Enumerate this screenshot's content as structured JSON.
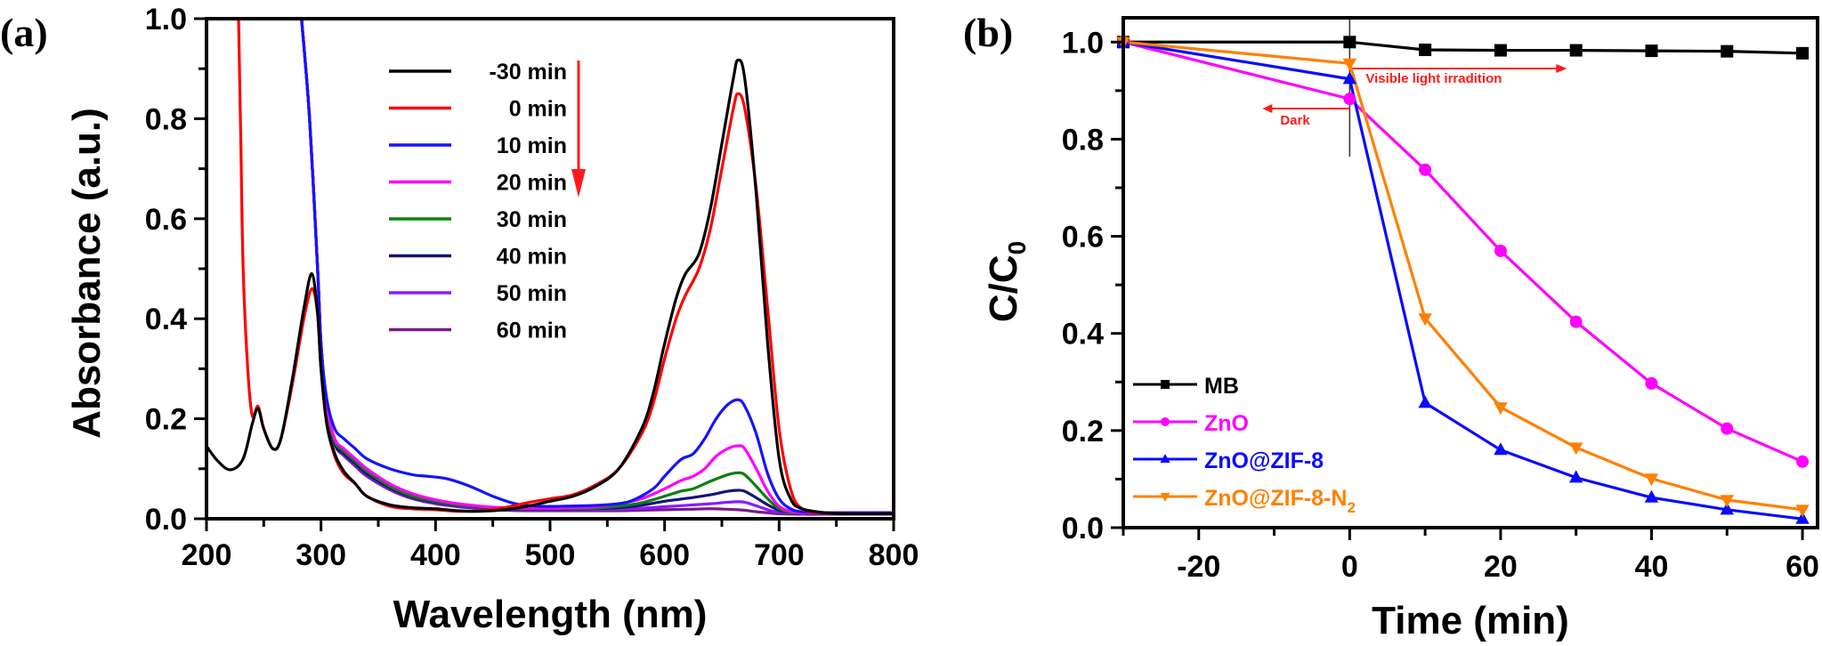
{
  "chart_data": [
    {
      "panel_label": "(a)",
      "type": "line",
      "title": "",
      "xlabel": "Wavelength (nm)",
      "ylabel": "Absorbance (a.u.)",
      "xlim": [
        200,
        800
      ],
      "ylim": [
        0.0,
        1.0
      ],
      "xticks": [
        200,
        300,
        400,
        500,
        600,
        700,
        800
      ],
      "xtick_labels": [
        "200",
        "300",
        "400",
        "500",
        "600",
        "700",
        "800"
      ],
      "yticks": [
        0.0,
        0.2,
        0.4,
        0.6,
        0.8,
        1.0
      ],
      "ytick_labels": [
        "0.0",
        "0.2",
        "0.4",
        "0.6",
        "0.8",
        "1.0"
      ],
      "grid": false,
      "legend_position": "top-center",
      "annotation": "red downward arrow beside legend indicating decreasing absorbance with time",
      "series": [
        {
          "name": "-30 min",
          "color": "#000000",
          "x": [
            200,
            210,
            221,
            232,
            240,
            245,
            250,
            258,
            265,
            275,
            285,
            292,
            297,
            300,
            305,
            312,
            320,
            330,
            340,
            360,
            380,
            400,
            420,
            440,
            460,
            480,
            500,
            520,
            540,
            560,
            580,
            590,
            600,
            610,
            618,
            630,
            640,
            650,
            660,
            664,
            670,
            680,
            690,
            700,
            710,
            720,
            740,
            760,
            800
          ],
          "y": [
            0.145,
            0.115,
            0.098,
            0.12,
            0.19,
            0.22,
            0.18,
            0.14,
            0.16,
            0.28,
            0.42,
            0.49,
            0.41,
            0.3,
            0.19,
            0.13,
            0.095,
            0.07,
            0.045,
            0.028,
            0.022,
            0.02,
            0.016,
            0.015,
            0.018,
            0.025,
            0.035,
            0.045,
            0.065,
            0.1,
            0.18,
            0.25,
            0.35,
            0.44,
            0.489,
            0.53,
            0.62,
            0.75,
            0.88,
            0.917,
            0.88,
            0.65,
            0.35,
            0.12,
            0.04,
            0.02,
            0.012,
            0.01,
            0.01
          ]
        },
        {
          "name": "0 min",
          "color": "#ff0000",
          "x": [
            228,
            230,
            232,
            236,
            240,
            245,
            250,
            258,
            265,
            275,
            285,
            292,
            297,
            300,
            305,
            312,
            320,
            330,
            340,
            360,
            380,
            400,
            420,
            440,
            460,
            480,
            500,
            520,
            540,
            560,
            580,
            590,
            600,
            610,
            618,
            630,
            640,
            650,
            660,
            664,
            670,
            680,
            690,
            700,
            710,
            720,
            740,
            760,
            800
          ],
          "y": [
            1.0,
            0.75,
            0.5,
            0.3,
            0.206,
            0.225,
            0.18,
            0.14,
            0.16,
            0.27,
            0.4,
            0.46,
            0.41,
            0.3,
            0.19,
            0.125,
            0.09,
            0.07,
            0.045,
            0.025,
            0.02,
            0.018,
            0.015,
            0.016,
            0.022,
            0.032,
            0.04,
            0.048,
            0.068,
            0.1,
            0.17,
            0.23,
            0.32,
            0.4,
            0.446,
            0.5,
            0.58,
            0.7,
            0.82,
            0.85,
            0.82,
            0.66,
            0.42,
            0.18,
            0.06,
            0.02,
            0.012,
            0.01,
            0.01
          ]
        },
        {
          "name": "10 min",
          "color": "#1414ff",
          "x": [
            283,
            290,
            297,
            300,
            305,
            312,
            320,
            330,
            340,
            360,
            380,
            393,
            410,
            430,
            450,
            470,
            490,
            510,
            530,
            550,
            570,
            590,
            600,
            614,
            625,
            635,
            645,
            655,
            664,
            670,
            680,
            690,
            700,
            710,
            720,
            740,
            760,
            800
          ],
          "y": [
            1.0,
            0.8,
            0.5,
            0.35,
            0.24,
            0.18,
            0.16,
            0.14,
            0.12,
            0.1,
            0.088,
            0.085,
            0.08,
            0.065,
            0.045,
            0.03,
            0.025,
            0.025,
            0.026,
            0.028,
            0.035,
            0.06,
            0.085,
            0.118,
            0.13,
            0.16,
            0.2,
            0.228,
            0.238,
            0.225,
            0.17,
            0.09,
            0.04,
            0.02,
            0.014,
            0.012,
            0.012,
            0.012
          ]
        },
        {
          "name": "20 min",
          "color": "#ff00ff",
          "x": [
            283,
            290,
            297,
            300,
            305,
            312,
            320,
            330,
            340,
            360,
            380,
            400,
            420,
            440,
            460,
            480,
            500,
            520,
            540,
            560,
            580,
            600,
            614,
            625,
            635,
            645,
            655,
            664,
            670,
            680,
            690,
            700,
            710,
            720,
            740,
            760,
            800
          ],
          "y": [
            1.0,
            0.8,
            0.5,
            0.35,
            0.23,
            0.16,
            0.14,
            0.12,
            0.1,
            0.07,
            0.05,
            0.038,
            0.03,
            0.025,
            0.022,
            0.021,
            0.021,
            0.022,
            0.024,
            0.03,
            0.04,
            0.06,
            0.076,
            0.085,
            0.1,
            0.125,
            0.14,
            0.146,
            0.14,
            0.1,
            0.055,
            0.025,
            0.015,
            0.012,
            0.012,
            0.012,
            0.012
          ]
        },
        {
          "name": "30 min",
          "color": "#0a800a",
          "x": [
            283,
            290,
            297,
            300,
            305,
            312,
            320,
            330,
            340,
            360,
            380,
            400,
            420,
            440,
            460,
            480,
            500,
            520,
            540,
            560,
            580,
            600,
            614,
            625,
            640,
            655,
            664,
            670,
            680,
            690,
            700,
            710,
            720,
            740,
            800
          ],
          "y": [
            1.0,
            0.8,
            0.5,
            0.35,
            0.22,
            0.155,
            0.135,
            0.115,
            0.095,
            0.065,
            0.045,
            0.035,
            0.028,
            0.024,
            0.021,
            0.02,
            0.02,
            0.02,
            0.021,
            0.025,
            0.032,
            0.045,
            0.055,
            0.06,
            0.075,
            0.088,
            0.092,
            0.088,
            0.065,
            0.04,
            0.02,
            0.013,
            0.012,
            0.012,
            0.012
          ]
        },
        {
          "name": "40 min",
          "color": "#14147a",
          "x": [
            283,
            290,
            297,
            300,
            305,
            312,
            320,
            330,
            340,
            360,
            380,
            400,
            420,
            440,
            460,
            480,
            500,
            520,
            540,
            560,
            580,
            600,
            620,
            640,
            655,
            664,
            670,
            680,
            690,
            700,
            710,
            720,
            740,
            800
          ],
          "y": [
            1.0,
            0.8,
            0.5,
            0.35,
            0.22,
            0.15,
            0.13,
            0.11,
            0.09,
            0.062,
            0.043,
            0.033,
            0.027,
            0.023,
            0.02,
            0.019,
            0.019,
            0.019,
            0.02,
            0.022,
            0.027,
            0.035,
            0.041,
            0.048,
            0.055,
            0.057,
            0.055,
            0.042,
            0.028,
            0.017,
            0.013,
            0.012,
            0.012,
            0.012
          ]
        },
        {
          "name": "50 min",
          "color": "#8a1aff",
          "x": [
            283,
            290,
            297,
            300,
            305,
            312,
            320,
            330,
            340,
            360,
            380,
            400,
            420,
            440,
            460,
            480,
            500,
            520,
            540,
            560,
            580,
            600,
            620,
            640,
            655,
            664,
            670,
            680,
            690,
            700,
            720,
            740,
            800
          ],
          "y": [
            1.0,
            0.8,
            0.5,
            0.35,
            0.22,
            0.15,
            0.128,
            0.108,
            0.088,
            0.06,
            0.042,
            0.032,
            0.026,
            0.022,
            0.019,
            0.018,
            0.018,
            0.018,
            0.018,
            0.019,
            0.021,
            0.024,
            0.027,
            0.03,
            0.033,
            0.034,
            0.033,
            0.026,
            0.018,
            0.013,
            0.012,
            0.012,
            0.012
          ]
        },
        {
          "name": "60 min",
          "color": "#7a1a8a",
          "x": [
            283,
            290,
            297,
            300,
            305,
            312,
            320,
            330,
            340,
            360,
            380,
            400,
            420,
            440,
            460,
            480,
            500,
            520,
            540,
            560,
            580,
            600,
            620,
            640,
            655,
            664,
            670,
            680,
            690,
            700,
            720,
            740,
            800
          ],
          "y": [
            1.0,
            0.8,
            0.5,
            0.35,
            0.22,
            0.148,
            0.126,
            0.105,
            0.085,
            0.058,
            0.04,
            0.03,
            0.024,
            0.02,
            0.017,
            0.016,
            0.016,
            0.016,
            0.016,
            0.016,
            0.017,
            0.018,
            0.019,
            0.02,
            0.019,
            0.018,
            0.017,
            0.014,
            0.012,
            0.01,
            0.009,
            0.009,
            0.009
          ]
        }
      ]
    },
    {
      "panel_label": "(b)",
      "type": "line",
      "title": "",
      "xlabel": "Time (min)",
      "ylabel": "C/C",
      "ylabel_subscript": "0",
      "xlim": [
        -30,
        62
      ],
      "ylim": [
        0.0,
        1.05
      ],
      "xticks": [
        -20,
        0,
        20,
        40,
        60
      ],
      "xtick_labels": [
        "-20",
        "0",
        "20",
        "40",
        "60"
      ],
      "xminor": [
        -30,
        -10,
        10,
        30,
        50
      ],
      "yticks": [
        0.0,
        0.2,
        0.4,
        0.6,
        0.8,
        1.0
      ],
      "ytick_labels": [
        "0.0",
        "0.2",
        "0.4",
        "0.6",
        "0.8",
        "1.0"
      ],
      "grid": false,
      "legend_position": "bottom-left",
      "annotations": {
        "dark_label": "Dark",
        "light_label": "Visible light irradition",
        "divider_x": 0
      },
      "series": [
        {
          "name": "MB",
          "color": "#000000",
          "marker": "square",
          "x": [
            -30,
            0,
            10,
            20,
            30,
            40,
            50,
            60
          ],
          "y": [
            1.0,
            1.0,
            0.984,
            0.983,
            0.983,
            0.982,
            0.981,
            0.977
          ]
        },
        {
          "name": "ZnO",
          "color": "#ff00ff",
          "marker": "circle",
          "x": [
            -30,
            0,
            10,
            20,
            30,
            40,
            50,
            60
          ],
          "y": [
            1.0,
            0.883,
            0.737,
            0.57,
            0.424,
            0.297,
            0.204,
            0.136
          ]
        },
        {
          "name": "ZnO@ZIF-8",
          "color": "#0a0aff",
          "marker": "triangle-up",
          "x": [
            -30,
            0,
            10,
            20,
            30,
            40,
            50,
            60
          ],
          "y": [
            1.0,
            0.924,
            0.257,
            0.16,
            0.103,
            0.062,
            0.037,
            0.018
          ]
        },
        {
          "name": "ZnO@ZIF-8-N",
          "name_subscript": "2",
          "color": "#ff8000",
          "marker": "triangle-down",
          "x": [
            -30,
            0,
            10,
            20,
            30,
            40,
            50,
            60
          ],
          "y": [
            1.0,
            0.956,
            0.431,
            0.248,
            0.165,
            0.101,
            0.057,
            0.037
          ]
        }
      ]
    }
  ]
}
